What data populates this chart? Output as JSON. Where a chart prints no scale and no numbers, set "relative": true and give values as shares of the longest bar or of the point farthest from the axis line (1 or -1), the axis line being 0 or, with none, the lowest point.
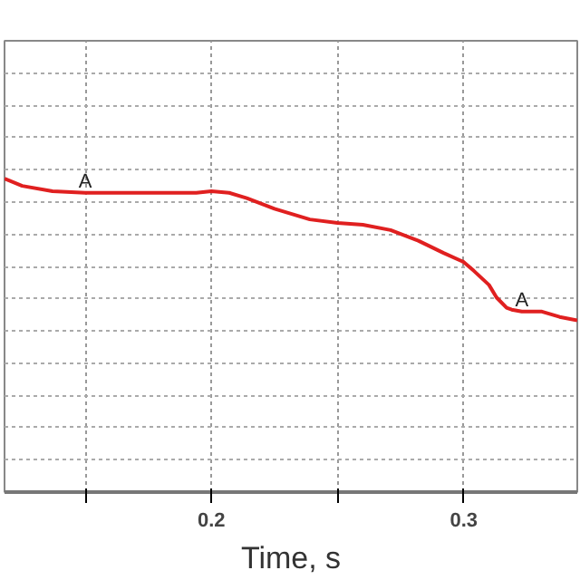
{
  "chart_data": {
    "type": "line",
    "xlabel": "Time, s",
    "relative": true,
    "tick_labels": "x",
    "grid": true,
    "marker": "none",
    "line_style": "solid",
    "x": [
      0.118,
      0.125,
      0.137,
      0.15,
      0.175,
      0.194,
      0.2,
      0.207,
      0.214,
      0.225,
      0.239,
      0.25,
      0.26,
      0.271,
      0.282,
      0.292,
      0.3,
      0.304,
      0.31,
      0.313,
      0.317,
      0.319,
      0.323,
      0.331,
      0.338,
      0.345
    ],
    "series": [
      {
        "color": "#e02020",
        "values": [
          1.0,
          0.977,
          0.96,
          0.955,
          0.955,
          0.955,
          0.96,
          0.955,
          0.938,
          0.904,
          0.87,
          0.859,
          0.853,
          0.836,
          0.802,
          0.763,
          0.734,
          0.706,
          0.661,
          0.621,
          0.588,
          0.582,
          0.576,
          0.576,
          0.559,
          0.548
        ]
      }
    ],
    "xlim": [
      0.118,
      0.345
    ],
    "xticks": [
      {
        "value": 0.15,
        "label": null
      },
      0.2,
      {
        "value": 0.25,
        "label": null
      },
      0.3
    ],
    "annotations": [
      {
        "text": "A",
        "x": 0.15,
        "y": 0.955
      },
      {
        "text": "A",
        "x": 0.323,
        "y": 0.576
      }
    ]
  }
}
